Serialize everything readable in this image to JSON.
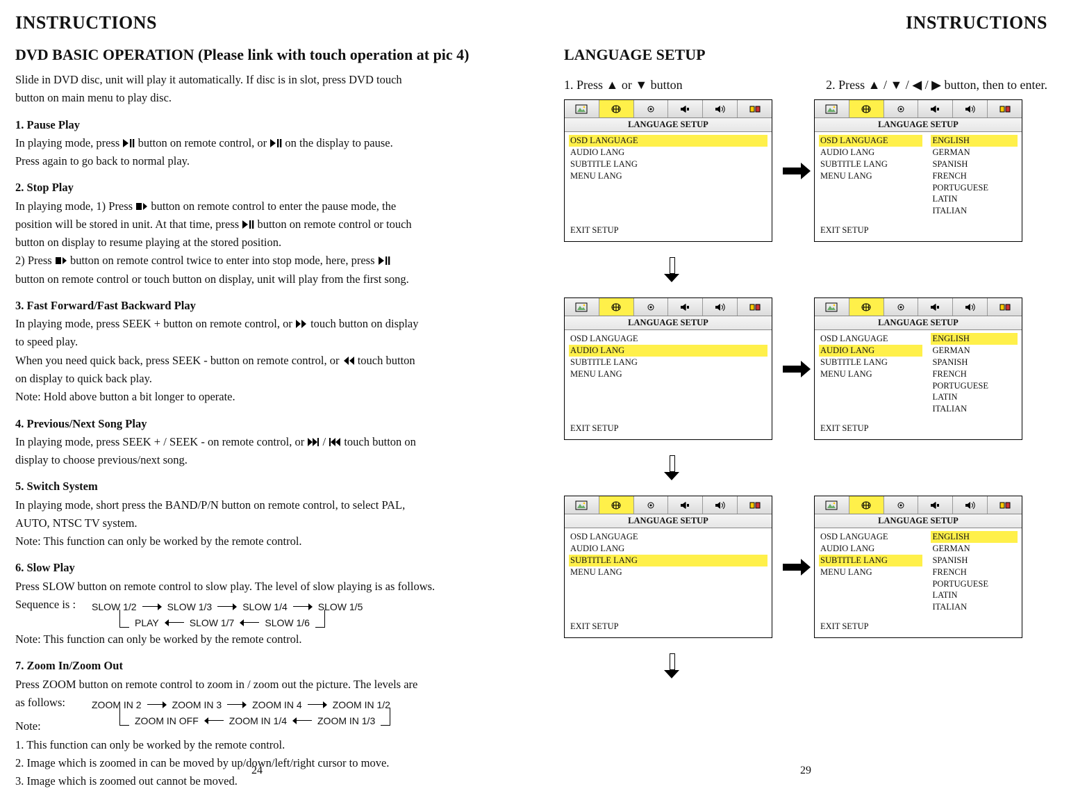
{
  "doc_title": "INSTRUCTIONS",
  "left": {
    "h1": "DVD BASIC OPERATION (Please link with touch operation at pic 4)",
    "intro1": "Slide in DVD disc, unit will play it automatically. If disc is in slot, press DVD touch",
    "intro2": "button on main menu to play disc.",
    "s1_title": "1. Pause Play",
    "s1_l1a": "In playing mode, press ",
    "s1_l1b": " button on remote control, or ",
    "s1_l1c": " on the display to pause.",
    "s1_l2": "Press again to go back to normal play.",
    "s2_title": "2. Stop Play",
    "s2_l1a": "In playing mode, 1) Press ",
    "s2_l1b": " button on remote control to enter the pause mode, the",
    "s2_l2a": "position will be stored in unit. At that time, press ",
    "s2_l2b": " button on remote control or touch",
    "s2_l3": "button on display to resume playing at the stored position.",
    "s2_l4a": "2) Press ",
    "s2_l4b": " button on remote control twice to enter into stop mode, here, press ",
    "s2_l5": "button on remote control or touch button on display, unit will play from the first song.",
    "s3_title": "3. Fast Forward/Fast Backward Play",
    "s3_l1a": "In playing mode, press SEEK + button on remote control, or ",
    "s3_l1b": " touch button on display",
    "s3_l2": "to speed play.",
    "s3_l3a": "When you need quick back, press SEEK - button on remote control, or ",
    "s3_l3b": " touch button",
    "s3_l4": "on display to quick back play.",
    "s3_l5": "Note: Hold above button a bit longer to operate.",
    "s4_title": "4. Previous/Next Song Play",
    "s4_l1a": "In playing mode, press SEEK + / SEEK - on remote control, or ",
    "s4_l1b": "  touch button on",
    "s4_l2": "display to choose previous/next song.",
    "s5_title": "5. Switch System",
    "s5_l1": "In playing mode, short press the BAND/P/N button on remote control, to select PAL,",
    "s5_l2": "AUTO, NTSC TV system.",
    "s5_l3": "Note: This function can only be worked by the remote control.",
    "s6_title": "6.  Slow Play",
    "s6_l1": "Press SLOW button on remote control to slow play. The level of slow playing is as follows.",
    "s6_seq_label": "Sequence is :",
    "slow_seq": [
      "SLOW 1/2",
      "SLOW 1/3",
      "SLOW 1/4",
      "SLOW 1/5",
      "SLOW 1/6",
      "SLOW 1/7",
      "PLAY"
    ],
    "s6_l2": "Note: This function can only be worked by the remote control.",
    "s7_title": "7. Zoom In/Zoom Out",
    "s7_l1": "Press ZOOM button on remote control to zoom in / zoom out the picture. The levels are",
    "s7_l2": "as follows:",
    "zoom_seq": [
      "ZOOM  IN  2",
      "ZOOM  IN  3",
      "ZOOM  IN  4",
      "ZOOM  IN  1/2",
      "ZOOM  IN  1/3",
      "ZOOM  IN  1/4",
      "ZOOM  IN  OFF"
    ],
    "s7_note": "Note:",
    "s7_n1": "1.  This function can only be worked by the remote control.",
    "s7_n2": "2.  Image which is zoomed in can be moved by up/down/left/right cursor to move.",
    "s7_n3": "3.  Image which is zoomed out cannot be moved.",
    "pagenum": "24"
  },
  "right": {
    "h1": "LANGUAGE SETUP",
    "step1a": "1. Press ",
    "step1b": " or ",
    "step1c": " button",
    "step2a": "2. Press ",
    "step2b": " / ",
    "step2c": " / ",
    "step2d": " / ",
    "step2e": " button, then to enter.",
    "osd": {
      "title": "LANGUAGE SETUP",
      "items": [
        "OSD LANGUAGE",
        "AUDIO LANG",
        "SUBTITLE LANG",
        "MENU LANG"
      ],
      "options": [
        "ENGLISH",
        "GERMAN",
        "SPANISH",
        "FRENCH",
        "PORTUGUESE",
        "LATIN",
        "ITALIAN"
      ],
      "exit": "EXIT SETUP"
    },
    "pagenum": "29"
  },
  "colors": {
    "highlight": "#fff04a",
    "tab_bg": "#e8e8e8",
    "border": "#000000"
  }
}
